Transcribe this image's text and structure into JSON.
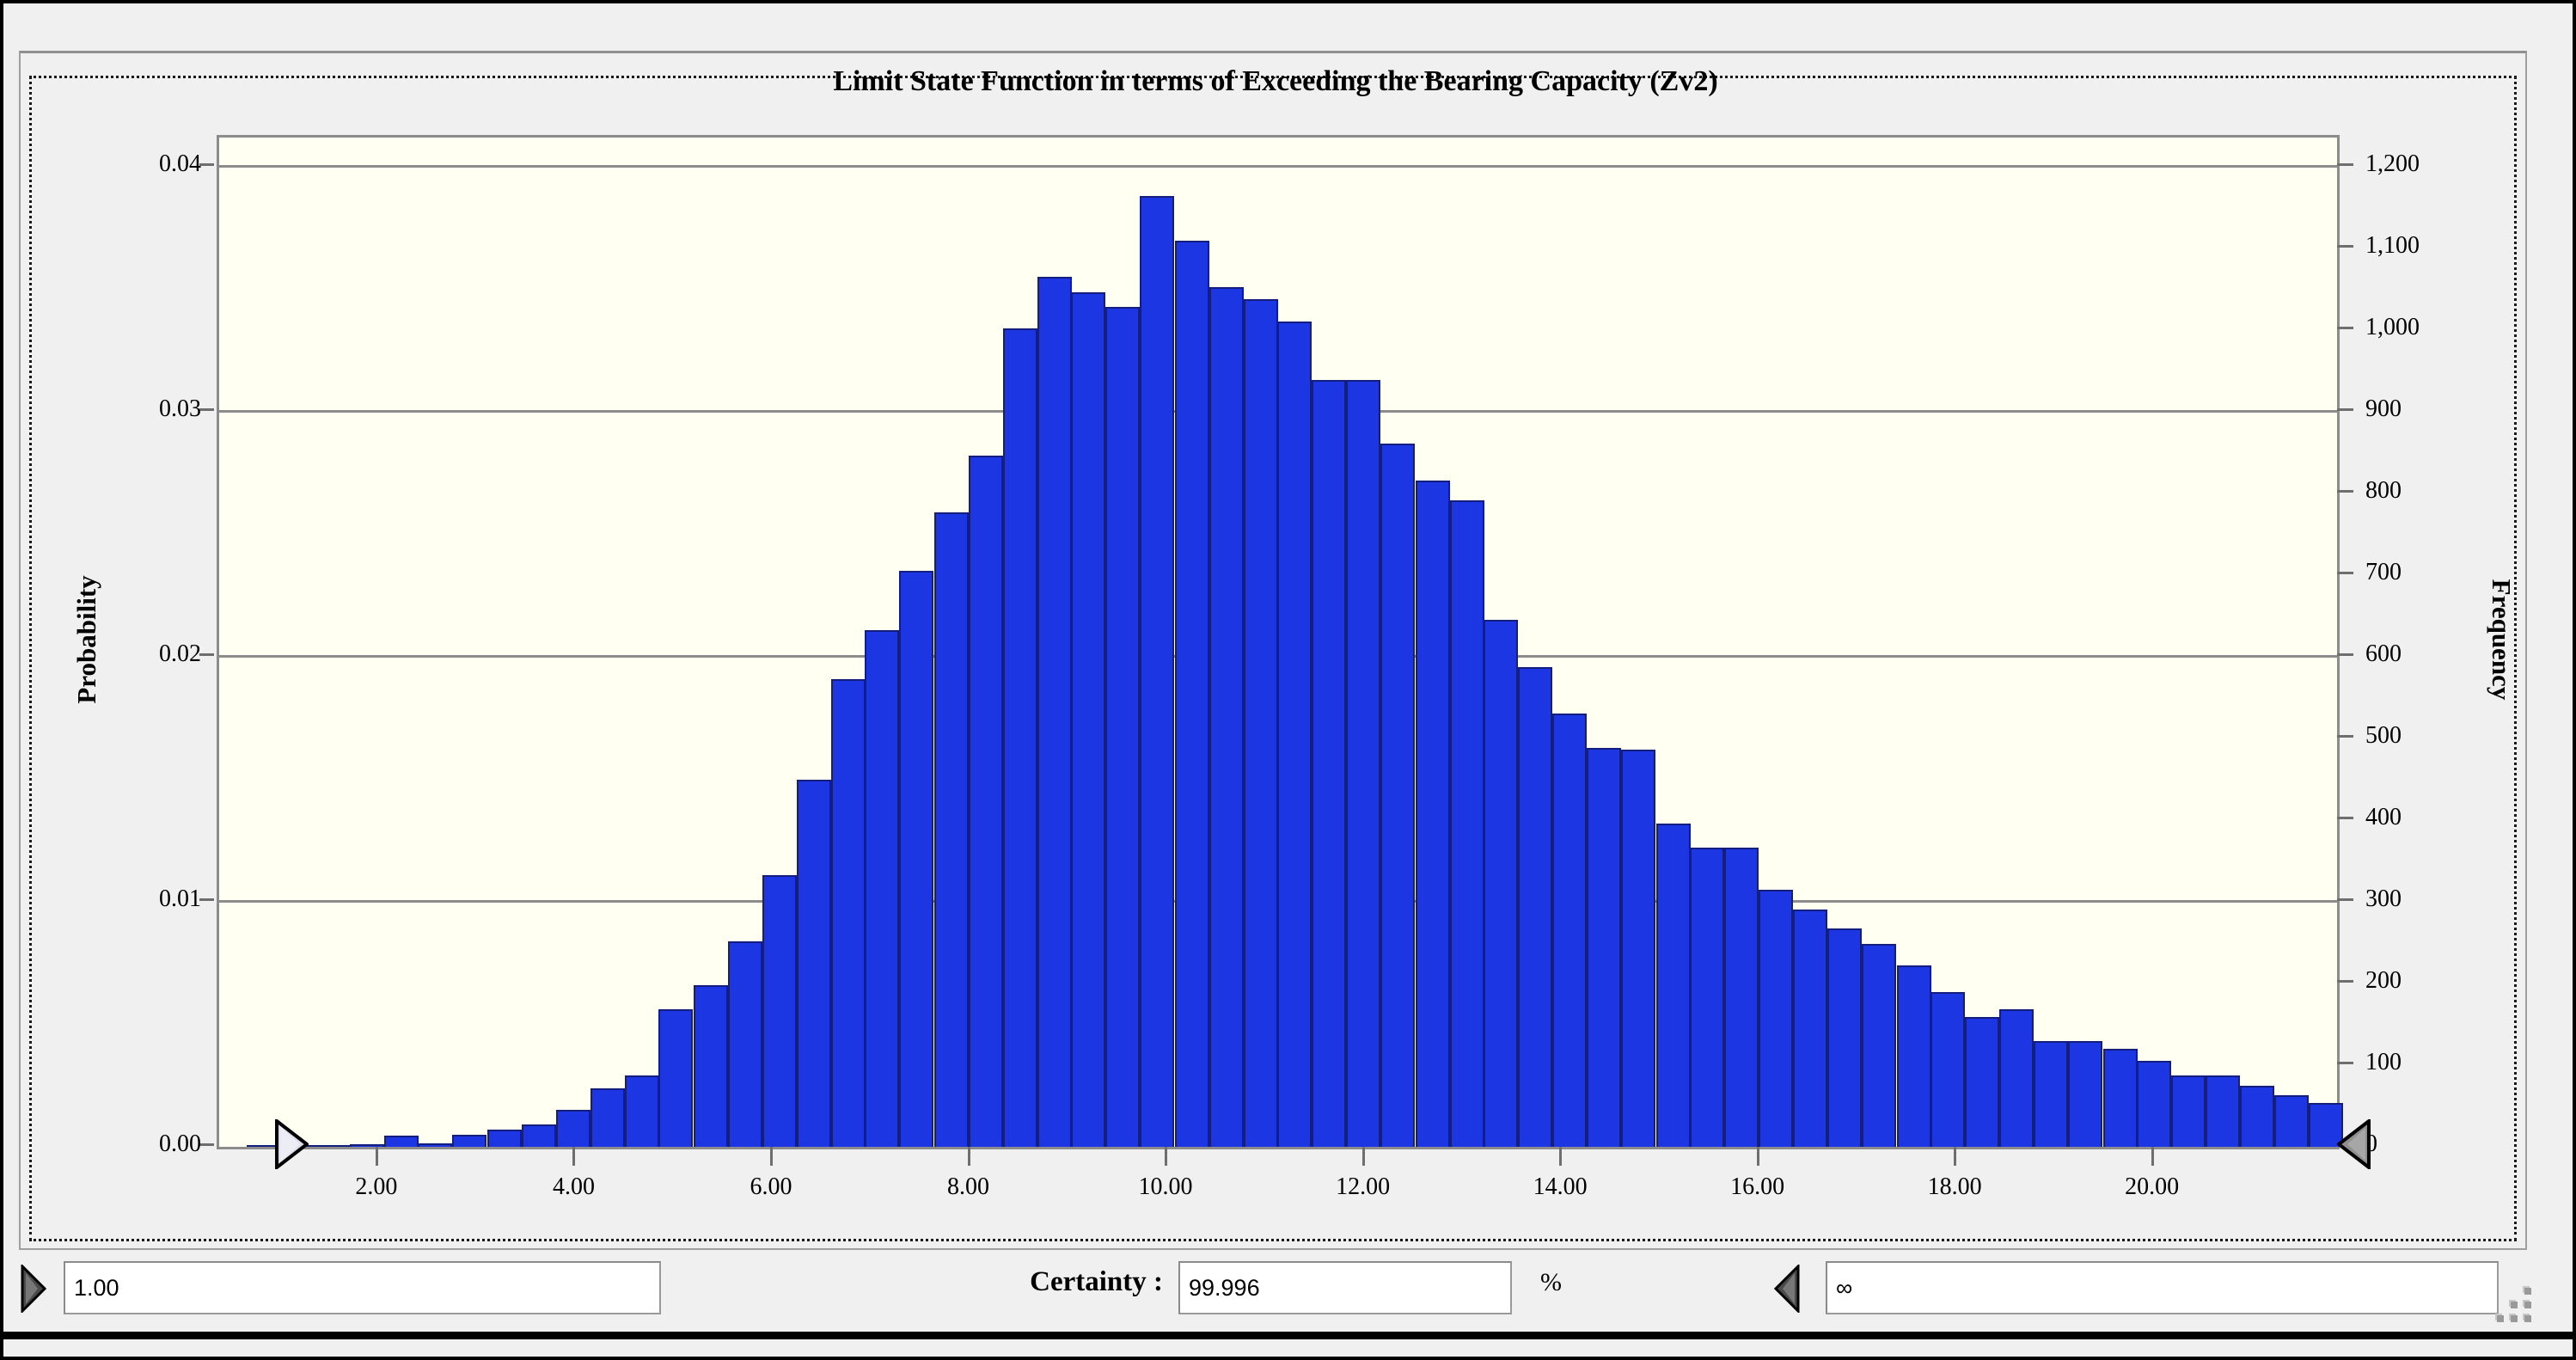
{
  "chart": {
    "title": "Limit State Function in terms of Exceeding the Bearing Capacity (Zv2)",
    "left_axis": {
      "label": "Probability",
      "ticks": [
        {
          "value": 0.0,
          "label": "0.00"
        },
        {
          "value": 0.01,
          "label": "0.01"
        },
        {
          "value": 0.02,
          "label": "0.02"
        },
        {
          "value": 0.03,
          "label": "0.03"
        },
        {
          "value": 0.04,
          "label": "0.04"
        }
      ]
    },
    "right_axis": {
      "label": "Frequency",
      "ticks": [
        {
          "value": 0,
          "label": "0"
        },
        {
          "value": 100,
          "label": "100"
        },
        {
          "value": 200,
          "label": "200"
        },
        {
          "value": 300,
          "label": "300"
        },
        {
          "value": 400,
          "label": "400"
        },
        {
          "value": 500,
          "label": "500"
        },
        {
          "value": 600,
          "label": "600"
        },
        {
          "value": 700,
          "label": "700"
        },
        {
          "value": 800,
          "label": "800"
        },
        {
          "value": 900,
          "label": "900"
        },
        {
          "value": 1000,
          "label": "1,000"
        },
        {
          "value": 1100,
          "label": "1,100"
        },
        {
          "value": 1200,
          "label": "1,200"
        }
      ]
    },
    "x_axis": {
      "ticks": [
        {
          "value": 2,
          "label": "2.00"
        },
        {
          "value": 4,
          "label": "4.00"
        },
        {
          "value": 6,
          "label": "6.00"
        },
        {
          "value": 8,
          "label": "8.00"
        },
        {
          "value": 10,
          "label": "10.00"
        },
        {
          "value": 12,
          "label": "12.00"
        },
        {
          "value": 14,
          "label": "14.00"
        },
        {
          "value": 16,
          "label": "16.00"
        },
        {
          "value": 18,
          "label": "18.00"
        },
        {
          "value": 20,
          "label": "20.00"
        }
      ]
    },
    "colors": {
      "bar_fill": "#1d36e4",
      "bar_border": "#141f7d",
      "plot_background": "#fffff2",
      "gridline": "#8c8c8c",
      "window_background": "#f0f0f0"
    }
  },
  "chart_data": {
    "type": "bar",
    "title": "Limit State Function in terms of Exceeding the Bearing Capacity (Zv2)",
    "xlabel": "",
    "ylabel_left": "Probability",
    "ylabel_right": "Frequency",
    "xlim": [
      0.38,
      21.85
    ],
    "ylim_left": [
      0,
      0.0412
    ],
    "ylim_right": [
      0,
      1236
    ],
    "grid": true,
    "legend": false,
    "bin_width": 0.3486,
    "trials_implied": 30000,
    "x": [
      0.83,
      1.18,
      1.53,
      1.88,
      2.23,
      2.57,
      2.92,
      3.27,
      3.62,
      3.97,
      4.32,
      4.67,
      5.01,
      5.36,
      5.71,
      6.06,
      6.41,
      6.76,
      7.1,
      7.45,
      7.8,
      8.15,
      8.5,
      8.85,
      9.19,
      9.54,
      9.89,
      10.24,
      10.59,
      10.94,
      11.28,
      11.63,
      11.98,
      12.33,
      12.68,
      13.03,
      13.37,
      13.72,
      14.07,
      14.42,
      14.77,
      15.12,
      15.46,
      15.81,
      16.16,
      16.51,
      16.86,
      17.21,
      17.56,
      17.9,
      18.25,
      18.6,
      18.95,
      19.3,
      19.65,
      19.99,
      20.34,
      20.69,
      21.04,
      21.39,
      21.74
    ],
    "probability": [
      3e-05,
      7e-05,
      7e-05,
      0.0001,
      0.00045,
      0.00013,
      0.0005,
      0.0007,
      0.0009,
      0.0015,
      0.0024,
      0.0029,
      0.0056,
      0.0066,
      0.0084,
      0.0111,
      0.015,
      0.0191,
      0.0211,
      0.0235,
      0.0259,
      0.0282,
      0.0334,
      0.0355,
      0.0349,
      0.0343,
      0.0388,
      0.037,
      0.0351,
      0.0346,
      0.0337,
      0.0313,
      0.0313,
      0.0287,
      0.0272,
      0.0264,
      0.0215,
      0.0196,
      0.0177,
      0.0163,
      0.0162,
      0.0132,
      0.0122,
      0.0122,
      0.0105,
      0.0097,
      0.0089,
      0.0083,
      0.0074,
      0.0063,
      0.0053,
      0.0056,
      0.0043,
      0.0043,
      0.004,
      0.0035,
      0.0029,
      0.0029,
      0.0025,
      0.0021,
      0.0018
    ],
    "frequency": [
      1,
      2,
      2,
      3,
      14,
      4,
      15,
      21,
      27,
      45,
      72,
      87,
      168,
      198,
      252,
      333,
      450,
      573,
      633,
      705,
      777,
      846,
      1002,
      1065,
      1047,
      1029,
      1164,
      1110,
      1053,
      1038,
      1011,
      939,
      939,
      861,
      816,
      792,
      645,
      588,
      531,
      489,
      486,
      396,
      366,
      366,
      315,
      291,
      267,
      249,
      222,
      189,
      159,
      168,
      129,
      129,
      120,
      105,
      87,
      87,
      75,
      63,
      54
    ],
    "sliders": {
      "left_value": 1.0,
      "right_value": "Infinity"
    }
  },
  "controls": {
    "left_grabber_value": "1.00",
    "certainty_label": "Certainty :",
    "certainty_value": "99.996",
    "percent_label": "%",
    "right_grabber_value": "∞"
  }
}
